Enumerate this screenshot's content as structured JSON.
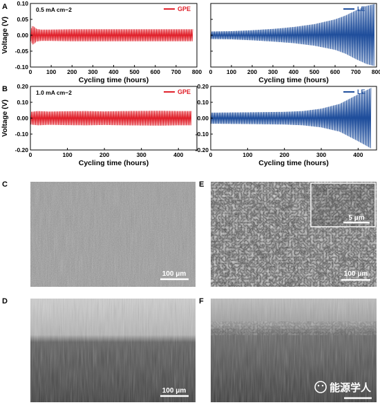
{
  "chart_data": [
    {
      "id": "A-left",
      "panel": "A",
      "type": "line",
      "annotation": "0.5 mA cm−2",
      "legend": [
        "GPE"
      ],
      "series_color": "#e0202a",
      "xlabel": "Cycling time (hours)",
      "ylabel": "Voltage (V)",
      "xlim": [
        0,
        800
      ],
      "ylim": [
        -0.1,
        0.1
      ],
      "xticks": [
        "0",
        "100",
        "200",
        "300",
        "400",
        "500",
        "600",
        "700",
        "800"
      ],
      "yticks": [
        "-0.10",
        "-0.05",
        "0.00",
        "0.05",
        "0.10"
      ],
      "series": [
        {
          "name": "GPE",
          "x": [
            0,
            10,
            20,
            30,
            50,
            100,
            200,
            300,
            400,
            500,
            600,
            700,
            780
          ],
          "upper": [
            0.016,
            0.03,
            0.026,
            0.02,
            0.018,
            0.018,
            0.019,
            0.019,
            0.019,
            0.019,
            0.019,
            0.019,
            0.019
          ],
          "lower": [
            -0.016,
            -0.03,
            -0.026,
            -0.02,
            -0.018,
            -0.018,
            -0.019,
            -0.019,
            -0.019,
            -0.019,
            -0.019,
            -0.019,
            -0.019
          ]
        }
      ]
    },
    {
      "id": "A-right",
      "panel": "A",
      "type": "line",
      "legend": [
        "LE"
      ],
      "series_color": "#1f4e9c",
      "xlabel": "Cycling time (hours)",
      "ylabel": "",
      "xlim": [
        0,
        800
      ],
      "ylim": [
        -0.1,
        0.1
      ],
      "xticks": [
        "0",
        "100",
        "200",
        "300",
        "400",
        "500",
        "600",
        "700",
        "800"
      ],
      "yticks": [],
      "series": [
        {
          "name": "LE",
          "x": [
            0,
            100,
            200,
            300,
            400,
            500,
            600,
            650,
            700,
            750,
            790
          ],
          "upper": [
            0.012,
            0.013,
            0.016,
            0.02,
            0.026,
            0.035,
            0.05,
            0.062,
            0.078,
            0.092,
            0.098
          ],
          "lower": [
            -0.012,
            -0.013,
            -0.016,
            -0.02,
            -0.025,
            -0.033,
            -0.046,
            -0.058,
            -0.075,
            -0.09,
            -0.097
          ]
        }
      ]
    },
    {
      "id": "B-left",
      "panel": "B",
      "type": "line",
      "annotation": "1.0 mA cm−2",
      "legend": [
        "GPE"
      ],
      "series_color": "#e0202a",
      "xlabel": "Cycling time (hours)",
      "ylabel": "Voltage (V)",
      "xlim": [
        0,
        450
      ],
      "ylim": [
        -0.2,
        0.2
      ],
      "xticks": [
        "0",
        "100",
        "200",
        "300",
        "400"
      ],
      "yticks": [
        "-0.20",
        "-0.10",
        "0.00",
        "0.10",
        "0.20"
      ],
      "series": [
        {
          "name": "GPE",
          "x": [
            0,
            20,
            50,
            100,
            150,
            200,
            250,
            300,
            350,
            400,
            435
          ],
          "upper": [
            0.04,
            0.045,
            0.042,
            0.044,
            0.045,
            0.043,
            0.045,
            0.046,
            0.047,
            0.045,
            0.045
          ],
          "lower": [
            -0.04,
            -0.045,
            -0.042,
            -0.044,
            -0.045,
            -0.043,
            -0.045,
            -0.046,
            -0.047,
            -0.045,
            -0.045
          ]
        }
      ]
    },
    {
      "id": "B-right",
      "panel": "B",
      "type": "line",
      "legend": [
        "LE"
      ],
      "series_color": "#1f4e9c",
      "xlabel": "Cycling time (hours)",
      "ylabel": "",
      "xlim": [
        0,
        450
      ],
      "ylim": [
        -0.2,
        0.2
      ],
      "xticks": [
        "0",
        "100",
        "200",
        "300",
        "400"
      ],
      "yticks": [
        "-0.20",
        "-0.10",
        "0.00",
        "0.10",
        "0.20"
      ],
      "series": [
        {
          "name": "LE",
          "x": [
            0,
            100,
            200,
            250,
            300,
            350,
            400,
            435
          ],
          "upper": [
            0.035,
            0.037,
            0.04,
            0.045,
            0.06,
            0.09,
            0.15,
            0.19
          ],
          "lower": [
            -0.035,
            -0.037,
            -0.04,
            -0.045,
            -0.058,
            -0.085,
            -0.145,
            -0.19
          ]
        }
      ]
    }
  ],
  "micrographs": [
    {
      "panel": "C",
      "scale": "100 μm",
      "texture": "smooth"
    },
    {
      "panel": "E",
      "scale": "100 μm",
      "texture": "rough",
      "inset_scale": "5 μm"
    },
    {
      "panel": "D",
      "scale": "100 μm",
      "texture": "cross-smooth"
    },
    {
      "panel": "F",
      "scale": "",
      "texture": "cross-rough"
    }
  ],
  "watermark": "能源学人"
}
